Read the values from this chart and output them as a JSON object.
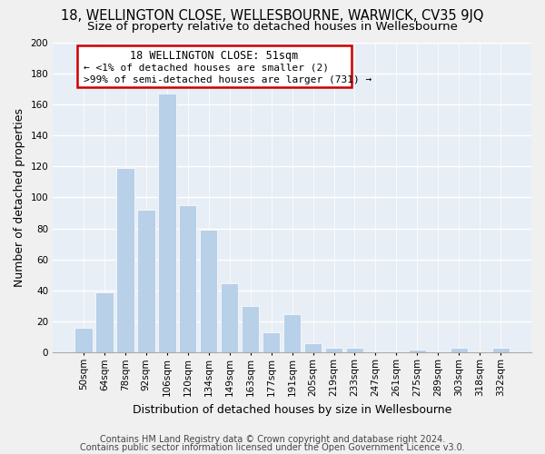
{
  "title": "18, WELLINGTON CLOSE, WELLESBOURNE, WARWICK, CV35 9JQ",
  "subtitle": "Size of property relative to detached houses in Wellesbourne",
  "xlabel": "Distribution of detached houses by size in Wellesbourne",
  "ylabel": "Number of detached properties",
  "bar_labels": [
    "50sqm",
    "64sqm",
    "78sqm",
    "92sqm",
    "106sqm",
    "120sqm",
    "134sqm",
    "149sqm",
    "163sqm",
    "177sqm",
    "191sqm",
    "205sqm",
    "219sqm",
    "233sqm",
    "247sqm",
    "261sqm",
    "275sqm",
    "289sqm",
    "303sqm",
    "318sqm",
    "332sqm"
  ],
  "bar_values": [
    16,
    39,
    119,
    92,
    167,
    95,
    79,
    45,
    30,
    13,
    25,
    6,
    3,
    3,
    0,
    0,
    2,
    0,
    3,
    0,
    3
  ],
  "bar_color": "#b8d0e8",
  "bar_edge_color": "#b8d0e8",
  "ylim": [
    0,
    200
  ],
  "yticks": [
    0,
    20,
    40,
    60,
    80,
    100,
    120,
    140,
    160,
    180,
    200
  ],
  "annotation_text_line1": "18 WELLINGTON CLOSE: 51sqm",
  "annotation_text_line2": "← <1% of detached houses are smaller (2)",
  "annotation_text_line3": ">99% of semi-detached houses are larger (731) →",
  "footer_line1": "Contains HM Land Registry data © Crown copyright and database right 2024.",
  "footer_line2": "Contains public sector information licensed under the Open Government Licence v3.0.",
  "background_color": "#f0f0f0",
  "plot_bg_color": "#e8eef5",
  "grid_color": "#ffffff",
  "title_fontsize": 10.5,
  "subtitle_fontsize": 9.5,
  "axis_label_fontsize": 9,
  "tick_fontsize": 7.5,
  "annotation_fontsize": 8.5,
  "footer_fontsize": 7
}
